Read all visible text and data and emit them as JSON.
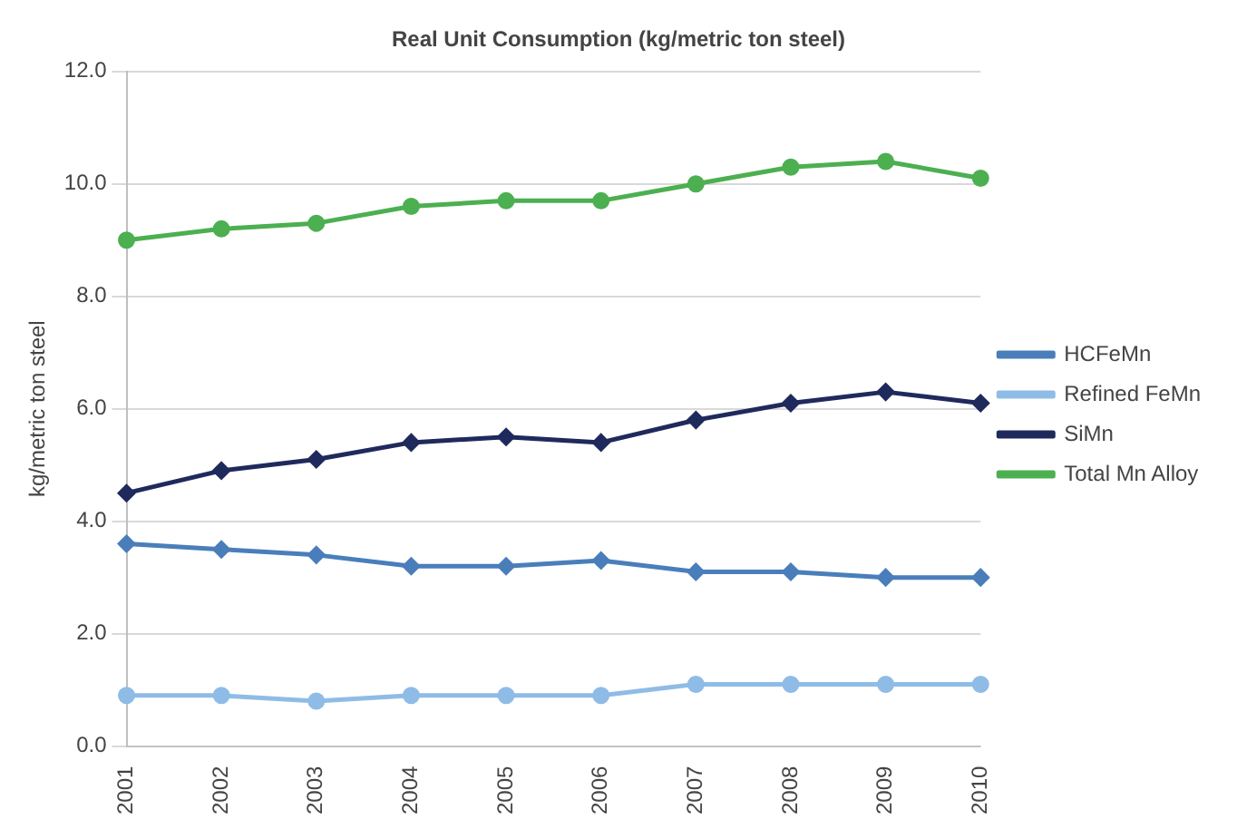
{
  "chart_data": {
    "type": "line",
    "title": "Real Unit Consumption (kg/metric ton steel)",
    "ylabel": "kg/metric ton steel",
    "categories": [
      "2001",
      "2002",
      "2003",
      "2004",
      "2005",
      "2006",
      "2007",
      "2008",
      "2009",
      "2010"
    ],
    "series": [
      {
        "name": "HCFeMn",
        "color": "#4a7ebb",
        "marker": "diamond",
        "values": [
          3.6,
          3.5,
          3.4,
          3.2,
          3.2,
          3.3,
          3.1,
          3.1,
          3.0,
          3.0
        ]
      },
      {
        "name": "Refined FeMn",
        "color": "#8fbce6",
        "marker": "circle",
        "values": [
          0.9,
          0.9,
          0.8,
          0.9,
          0.9,
          0.9,
          1.1,
          1.1,
          1.1,
          1.1
        ]
      },
      {
        "name": "SiMn",
        "color": "#1f2a5c",
        "marker": "diamond",
        "values": [
          4.5,
          4.9,
          5.1,
          5.4,
          5.5,
          5.4,
          5.8,
          6.1,
          6.3,
          6.1
        ]
      },
      {
        "name": "Total Mn Alloy",
        "color": "#4caf50",
        "marker": "circle",
        "values": [
          9.0,
          9.2,
          9.3,
          9.6,
          9.7,
          9.7,
          10.0,
          10.3,
          10.4,
          10.1
        ]
      }
    ],
    "ylim": [
      0,
      12
    ],
    "yticks": [
      {
        "value": 0,
        "label": "0.0"
      },
      {
        "value": 2,
        "label": "2.0"
      },
      {
        "value": 4,
        "label": "4.0"
      },
      {
        "value": 6,
        "label": "6.0"
      },
      {
        "value": 8,
        "label": "8.0"
      },
      {
        "value": 10,
        "label": "10.0"
      },
      {
        "value": 12,
        "label": "12.0"
      }
    ],
    "grid": "y",
    "legend": "right"
  }
}
